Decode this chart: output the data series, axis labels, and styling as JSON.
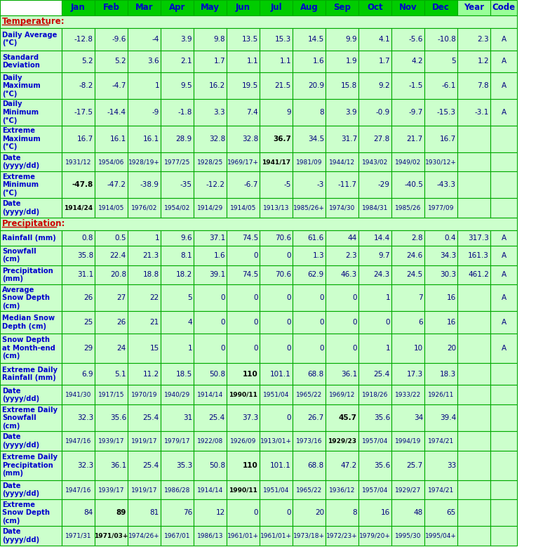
{
  "header_row": [
    "",
    "Jan",
    "Feb",
    "Mar",
    "Apr",
    "May",
    "Jun",
    "Jul",
    "Aug",
    "Sep",
    "Oct",
    "Nov",
    "Dec",
    "Year",
    "Code"
  ],
  "rows": [
    {
      "label": "Temperature:",
      "values": [
        "",
        "",
        "",
        "",
        "",
        "",
        "",
        "",
        "",
        "",
        "",
        "",
        "",
        ""
      ],
      "is_section": true
    },
    {
      "label": "Daily Average\n(°C)",
      "values": [
        "-12.8",
        "-9.6",
        "-4",
        "3.9",
        "9.8",
        "13.5",
        "15.3",
        "14.5",
        "9.9",
        "4.1",
        "-5.6",
        "-10.8",
        "2.3",
        "A"
      ],
      "bold_vals": [],
      "is_section": false
    },
    {
      "label": "Standard\nDeviation",
      "values": [
        "5.2",
        "5.2",
        "3.6",
        "2.1",
        "1.7",
        "1.1",
        "1.1",
        "1.6",
        "1.9",
        "1.7",
        "4.2",
        "5",
        "1.2",
        "A"
      ],
      "bold_vals": [],
      "is_section": false
    },
    {
      "label": "Daily\nMaximum\n(°C)",
      "values": [
        "-8.2",
        "-4.7",
        "1",
        "9.5",
        "16.2",
        "19.5",
        "21.5",
        "20.9",
        "15.8",
        "9.2",
        "-1.5",
        "-6.1",
        "7.8",
        "A"
      ],
      "bold_vals": [],
      "is_section": false
    },
    {
      "label": "Daily\nMinimum\n(°C)",
      "values": [
        "-17.5",
        "-14.4",
        "-9",
        "-1.8",
        "3.3",
        "7.4",
        "9",
        "8",
        "3.9",
        "-0.9",
        "-9.7",
        "-15.3",
        "-3.1",
        "A"
      ],
      "bold_vals": [],
      "is_section": false
    },
    {
      "label": "Extreme\nMaximum\n(°C)",
      "values": [
        "16.7",
        "16.1",
        "16.1",
        "28.9",
        "32.8",
        "32.8",
        "36.7",
        "34.5",
        "31.7",
        "27.8",
        "21.7",
        "16.7",
        "",
        ""
      ],
      "bold_vals": [
        "36.7"
      ],
      "is_section": false
    },
    {
      "label": "Date\n(yyyy/dd)",
      "values": [
        "1931/12",
        "1954/06",
        "1928/19+",
        "1977/25",
        "1928/25",
        "1969/17+",
        "1941/17",
        "1981/09",
        "1944/12",
        "1943/02",
        "1949/02",
        "1930/12+",
        "",
        ""
      ],
      "bold_vals": [
        "1941/17"
      ],
      "is_section": false
    },
    {
      "label": "Extreme\nMinimum\n(°C)",
      "values": [
        "-47.8",
        "-47.2",
        "-38.9",
        "-35",
        "-12.2",
        "-6.7",
        "-5",
        "-3",
        "-11.7",
        "-29",
        "-40.5",
        "-43.3",
        "",
        ""
      ],
      "bold_vals": [
        "-47.8"
      ],
      "is_section": false
    },
    {
      "label": "Date\n(yyyy/dd)",
      "values": [
        "1914/24",
        "1914/05",
        "1976/02",
        "1954/02",
        "1914/29",
        "1914/05",
        "1913/13",
        "1985/26+",
        "1974/30",
        "1984/31",
        "1985/26",
        "1977/09",
        "",
        ""
      ],
      "bold_vals": [
        "1914/24"
      ],
      "is_section": false
    },
    {
      "label": "Precipitation:",
      "values": [
        "",
        "",
        "",
        "",
        "",
        "",
        "",
        "",
        "",
        "",
        "",
        "",
        "",
        ""
      ],
      "is_section": true
    },
    {
      "label": "Rainfall (mm)",
      "values": [
        "0.8",
        "0.5",
        "1",
        "9.6",
        "37.1",
        "74.5",
        "70.6",
        "61.6",
        "44",
        "14.4",
        "2.8",
        "0.4",
        "317.3",
        "A"
      ],
      "bold_vals": [],
      "is_section": false
    },
    {
      "label": "Snowfall\n(cm)",
      "values": [
        "35.8",
        "22.4",
        "21.3",
        "8.1",
        "1.6",
        "0",
        "0",
        "1.3",
        "2.3",
        "9.7",
        "24.6",
        "34.3",
        "161.3",
        "A"
      ],
      "bold_vals": [],
      "is_section": false
    },
    {
      "label": "Precipitation\n(mm)",
      "values": [
        "31.1",
        "20.8",
        "18.8",
        "18.2",
        "39.1",
        "74.5",
        "70.6",
        "62.9",
        "46.3",
        "24.3",
        "24.5",
        "30.3",
        "461.2",
        "A"
      ],
      "bold_vals": [],
      "is_section": false
    },
    {
      "label": "Average\nSnow Depth\n(cm)",
      "values": [
        "26",
        "27",
        "22",
        "5",
        "0",
        "0",
        "0",
        "0",
        "0",
        "1",
        "7",
        "16",
        "",
        "A"
      ],
      "bold_vals": [],
      "is_section": false
    },
    {
      "label": "Median Snow\nDepth (cm)",
      "values": [
        "25",
        "26",
        "21",
        "4",
        "0",
        "0",
        "0",
        "0",
        "0",
        "0",
        "6",
        "16",
        "",
        "A"
      ],
      "bold_vals": [],
      "is_section": false
    },
    {
      "label": "Snow Depth\nat Month-end\n(cm)",
      "values": [
        "29",
        "24",
        "15",
        "1",
        "0",
        "0",
        "0",
        "0",
        "0",
        "1",
        "10",
        "20",
        "",
        "A"
      ],
      "bold_vals": [],
      "is_section": false
    },
    {
      "label": "Extreme Daily\nRainfall (mm)",
      "values": [
        "6.9",
        "5.1",
        "11.2",
        "18.5",
        "50.8",
        "110",
        "101.1",
        "68.8",
        "36.1",
        "25.4",
        "17.3",
        "18.3",
        "",
        ""
      ],
      "bold_vals": [
        "110"
      ],
      "is_section": false
    },
    {
      "label": "Date\n(yyyy/dd)",
      "values": [
        "1941/30",
        "1917/15",
        "1970/19",
        "1940/29",
        "1914/14",
        "1990/11",
        "1951/04",
        "1965/22",
        "1969/12",
        "1918/26",
        "1933/22",
        "1926/11",
        "",
        ""
      ],
      "bold_vals": [
        "1990/11"
      ],
      "is_section": false
    },
    {
      "label": "Extreme Daily\nSnowfall\n(cm)",
      "values": [
        "32.3",
        "35.6",
        "25.4",
        "31",
        "25.4",
        "37.3",
        "0",
        "26.7",
        "45.7",
        "35.6",
        "34",
        "39.4",
        "",
        ""
      ],
      "bold_vals": [
        "45.7"
      ],
      "is_section": false
    },
    {
      "label": "Date\n(yyyy/dd)",
      "values": [
        "1947/16",
        "1939/17",
        "1919/17",
        "1979/17",
        "1922/08",
        "1926/09",
        "1913/01+",
        "1973/16",
        "1929/23",
        "1957/04",
        "1994/19",
        "1974/21",
        "",
        ""
      ],
      "bold_vals": [
        "1929/23"
      ],
      "is_section": false
    },
    {
      "label": "Extreme Daily\nPrecipitation\n(mm)",
      "values": [
        "32.3",
        "36.1",
        "25.4",
        "35.3",
        "50.8",
        "110",
        "101.1",
        "68.8",
        "47.2",
        "35.6",
        "25.7",
        "33",
        "",
        ""
      ],
      "bold_vals": [
        "110"
      ],
      "is_section": false
    },
    {
      "label": "Date\n(yyyy/dd)",
      "values": [
        "1947/16",
        "1939/17",
        "1919/17",
        "1986/28",
        "1914/14",
        "1990/11",
        "1951/04",
        "1965/22",
        "1936/12",
        "1957/04",
        "1929/27",
        "1974/21",
        "",
        ""
      ],
      "bold_vals": [
        "1990/11"
      ],
      "is_section": false
    },
    {
      "label": "Extreme\nSnow Depth\n(cm)",
      "values": [
        "84",
        "89",
        "81",
        "76",
        "12",
        "0",
        "0",
        "20",
        "8",
        "16",
        "48",
        "65",
        "",
        ""
      ],
      "bold_vals": [
        "89"
      ],
      "is_section": false
    },
    {
      "label": "Date\n(yyyy/dd)",
      "values": [
        "1971/31",
        "1971/03+",
        "1974/26+",
        "1967/01",
        "1986/13",
        "1961/01+",
        "1961/01+",
        "1973/18+",
        "1972/23+",
        "1979/20+",
        "1995/30",
        "1995/04+",
        "",
        ""
      ],
      "bold_vals": [
        "1971/03+"
      ],
      "is_section": false
    }
  ],
  "header_bg": "#00CC00",
  "section_bg": "#CCFFCC",
  "data_bg_light": "#CCFFCC",
  "data_bg_white": "#FFFFFF",
  "header_text_color": "#0000CC",
  "section_text_color": "#CC0000",
  "data_text_color": "#000080",
  "border_color": "#00AA00",
  "title_underline_color": "#FF0000"
}
